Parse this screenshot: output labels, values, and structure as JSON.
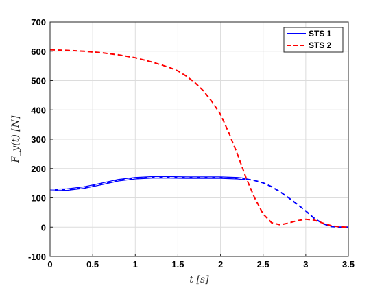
{
  "chart_data": {
    "type": "line",
    "xlabel": "t [s]",
    "ylabel": "F_y(t) [N]",
    "xlim": [
      0,
      3.5
    ],
    "ylim": [
      -100,
      700
    ],
    "x_ticks": [
      0,
      0.5,
      1,
      1.5,
      2,
      2.5,
      3,
      3.5
    ],
    "y_ticks": [
      -100,
      0,
      100,
      200,
      300,
      400,
      500,
      600,
      700
    ],
    "grid": true,
    "legend_position": "top-right",
    "series": [
      {
        "name": "STS 1",
        "color": "#0000ff",
        "style": "solid-then-dashed",
        "x": [
          0,
          0.2,
          0.4,
          0.6,
          0.8,
          1.0,
          1.2,
          1.4,
          1.6,
          1.8,
          2.0,
          2.2,
          2.3,
          2.4,
          2.5,
          2.6,
          2.7,
          2.8,
          2.9,
          3.0,
          3.1,
          3.2,
          3.3,
          3.4,
          3.5
        ],
        "values": [
          127,
          128,
          135,
          147,
          160,
          167,
          170,
          170,
          169,
          169,
          169,
          167,
          164,
          159,
          151,
          138,
          120,
          100,
          78,
          55,
          30,
          12,
          2,
          0,
          0
        ]
      },
      {
        "name": "STS 2",
        "color": "#ff0000",
        "style": "dashed",
        "x": [
          0,
          0.2,
          0.4,
          0.6,
          0.8,
          1.0,
          1.2,
          1.4,
          1.5,
          1.6,
          1.7,
          1.8,
          1.9,
          2.0,
          2.1,
          2.2,
          2.3,
          2.4,
          2.5,
          2.6,
          2.7,
          2.8,
          2.9,
          3.0,
          3.1,
          3.2,
          3.3,
          3.4,
          3.5
        ],
        "values": [
          605,
          603,
          600,
          595,
          588,
          578,
          563,
          545,
          533,
          515,
          493,
          465,
          428,
          385,
          320,
          248,
          168,
          100,
          45,
          15,
          8,
          14,
          22,
          27,
          24,
          14,
          5,
          1,
          0
        ]
      }
    ]
  }
}
